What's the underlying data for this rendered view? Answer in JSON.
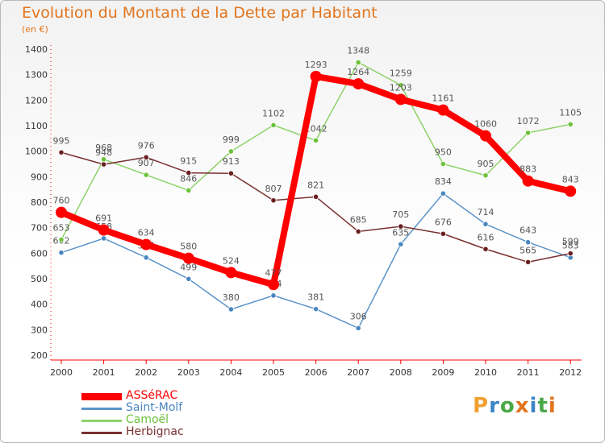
{
  "title": "Evolution du Montant de la Dette par Habitant",
  "unit": "(en €)",
  "logo": {
    "text": "Proxiti",
    "letters": [
      {
        "ch": "P",
        "color": "#f0a030"
      },
      {
        "ch": "r",
        "color": "#3d86c6"
      },
      {
        "ch": "o",
        "color": "#4aa847"
      },
      {
        "ch": "x",
        "color": "#e2741c"
      },
      {
        "ch": "i",
        "color": "#3d86c6"
      },
      {
        "ch": "t",
        "color": "#4aa847"
      },
      {
        "ch": "i",
        "color": "#e2741c"
      }
    ]
  },
  "chart_data": {
    "type": "line",
    "title": "Evolution du Montant de la Dette par Habitant",
    "ylabel": "(en €)",
    "xlabel": "",
    "ylim": [
      200,
      1400
    ],
    "yticks": [
      200,
      300,
      400,
      500,
      600,
      700,
      800,
      900,
      1000,
      1100,
      1200,
      1300,
      1400
    ],
    "categories": [
      "2000",
      "2001",
      "2002",
      "2003",
      "2004",
      "2005",
      "2006",
      "2007",
      "2008",
      "2009",
      "2010",
      "2011",
      "2012"
    ],
    "grid": false,
    "legend_position": "bottom-left",
    "series": [
      {
        "name": "Saint-Molf",
        "color": "#5b94c8",
        "point_color": "#4a86c0",
        "values": [
          602,
          658,
          583,
          499,
          380,
          434,
          381,
          306,
          635,
          834,
          714,
          643,
          583
        ],
        "labels": [
          "602",
          "658",
          "583",
          "499",
          "380",
          "434",
          "381",
          "306",
          "635",
          "834",
          "714",
          "643",
          "583"
        ]
      },
      {
        "name": "Camoël",
        "color": "#8ed36a",
        "point_color": "#6cc23a",
        "values": [
          653,
          968,
          907,
          846,
          999,
          1102,
          1042,
          1348,
          1259,
          950,
          905,
          1072,
          1105
        ],
        "labels": [
          "653",
          "968",
          "907",
          "846",
          "999",
          "1102",
          "1042",
          "1348",
          "1259",
          "950",
          "905",
          "1072",
          "1105"
        ]
      },
      {
        "name": "Herbignac",
        "color": "#7a3030",
        "point_color": "#6a2020",
        "values": [
          995,
          948,
          976,
          915,
          913,
          807,
          821,
          685,
          705,
          676,
          616,
          565,
          599
        ],
        "labels": [
          "995",
          "948",
          "976",
          "915",
          "913",
          "807",
          "821",
          "685",
          "705",
          "676",
          "616",
          "565",
          "599"
        ]
      },
      {
        "name": "ASSéRAC",
        "color": "#ff0000",
        "point_color": "#ff0000",
        "values": [
          760,
          691,
          634,
          580,
          524,
          477,
          1293,
          1264,
          1203,
          1161,
          1060,
          883,
          843
        ],
        "labels": [
          "760",
          "691",
          "634",
          "580",
          "524",
          "477",
          "1293",
          "1264",
          "1203",
          "1161",
          "1060",
          "883",
          "843"
        ]
      }
    ]
  }
}
